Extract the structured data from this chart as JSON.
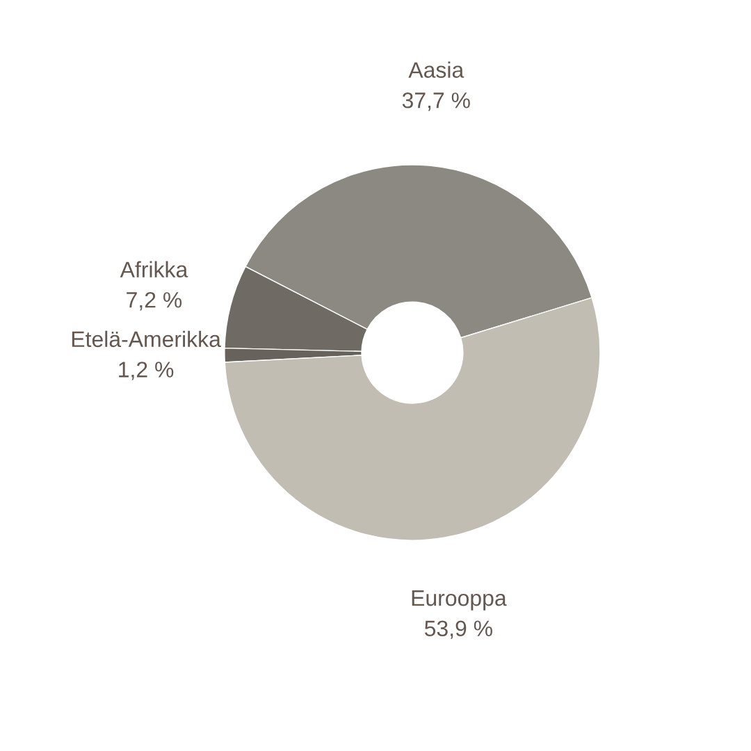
{
  "chart_data": {
    "type": "donut",
    "categories": [
      "Aasia",
      "Afrikka",
      "Etelä-Amerikka",
      "Eurooppa"
    ],
    "values": [
      37.7,
      7.2,
      1.2,
      53.9
    ],
    "colors": [
      "#8c8983",
      "#6f6b64",
      "#67625c",
      "#c2bdb2"
    ],
    "value_labels": [
      "37,7 %",
      "7,2 %",
      "1,2 %",
      "53,9 %"
    ]
  }
}
